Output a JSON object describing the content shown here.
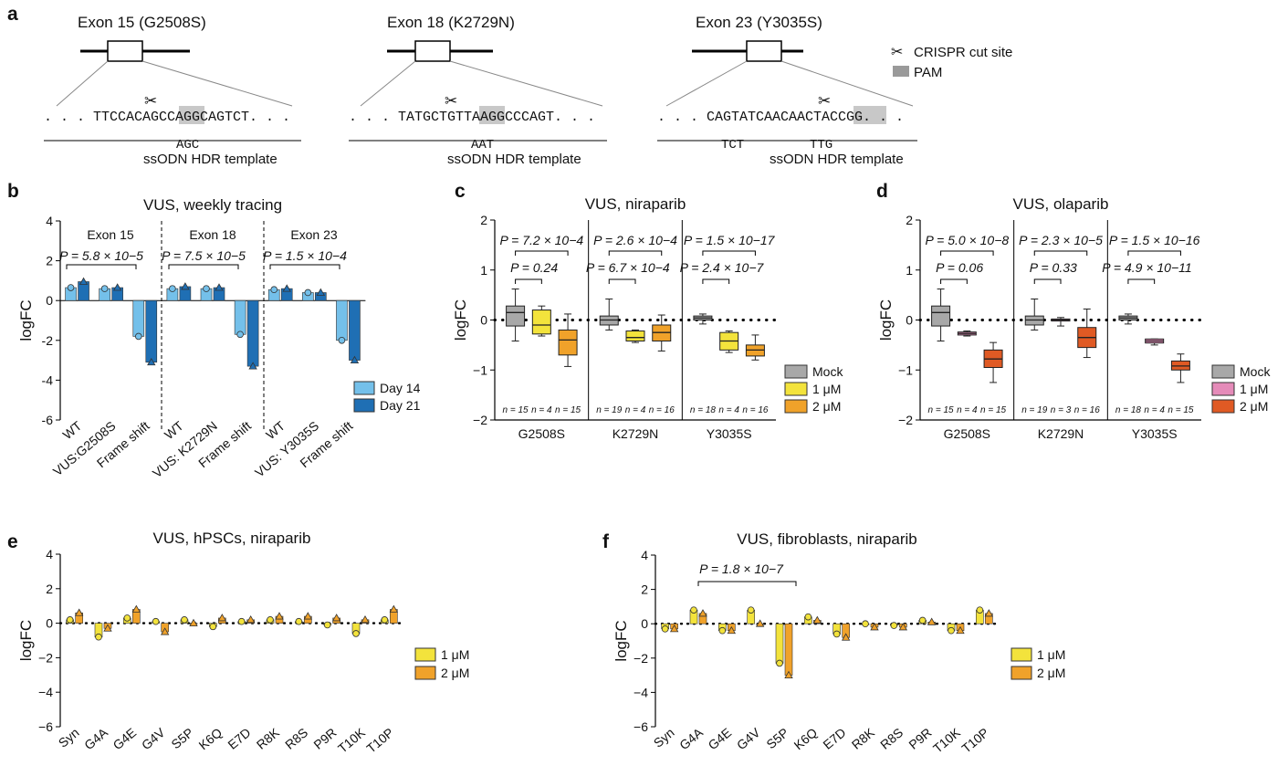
{
  "panel_labels": {
    "a": "a",
    "b": "b",
    "c": "c",
    "d": "d",
    "e": "e",
    "f": "f"
  },
  "colors": {
    "day14": "#74c0ea",
    "day21": "#1f6fb4",
    "mock": "#a8a8a8",
    "niraparib_1uM": "#f3e33c",
    "niraparib_2uM": "#f0a22a",
    "olaparib_1uM": "#e58bb9",
    "olaparib_2uM": "#e05a24",
    "pam": "#c8c8c8"
  },
  "panel_a": {
    "exons": [
      {
        "title": "Exon 15 (G2508S)",
        "sequence": ". . . TTCCACAGCCAGGCAGTCT. . .",
        "pam_index": 10,
        "template_change": "AGC",
        "template_label": "ssODN HDR template"
      },
      {
        "title": "Exon 18 (K2729N)",
        "sequence": ". . . TATGCTGTTAAGGCCCAGT. . .",
        "pam_index": 10,
        "template_change": "AAT",
        "template_label": "ssODN HDR template"
      },
      {
        "title": "Exon 23 (Y3035S)",
        "sequence": ". . . CAGTATCAACAACTACCGG. . .",
        "pam_index": 16,
        "template_change": "TCT",
        "template_change2": "TTG",
        "template_label": "ssODN HDR template"
      }
    ],
    "legend": {
      "cut_site": "CRISPR cut site",
      "pam": "PAM"
    }
  },
  "chart_data": [
    {
      "panel": "b",
      "type": "bar",
      "title": "VUS, weekly tracing",
      "ylabel": "logFC",
      "ylim": [
        -6,
        4
      ],
      "yticks": [
        "4",
        "2",
        "0",
        "-2",
        "-4",
        "-6"
      ],
      "categories": [
        "WT",
        "VUS:G2508S",
        "Frame shift",
        "WT",
        "VUS: K2729N",
        "Frame shift",
        "WT",
        "VUS: Y3035S",
        "Frame shift"
      ],
      "groups": [
        "Exon 15",
        "Exon 18",
        "Exon 23"
      ],
      "series": [
        {
          "name": "Day 14",
          "values": [
            0.65,
            0.6,
            -1.8,
            0.6,
            0.6,
            -1.7,
            0.55,
            0.4,
            -2.0
          ]
        },
        {
          "name": "Day 21",
          "values": [
            0.95,
            0.65,
            -3.1,
            0.7,
            0.65,
            -3.3,
            0.6,
            0.4,
            -3.0
          ]
        }
      ],
      "annotations": [
        "P = 5.8 × 10−5",
        "P = 7.5 × 10−5",
        "P = 1.5 × 10−4"
      ]
    },
    {
      "panel": "c",
      "type": "box",
      "title": "VUS, niraparib",
      "ylabel": "logFC",
      "ylim": [
        -2,
        2
      ],
      "yticks": [
        "2",
        "1",
        "0",
        "−1",
        "−2"
      ],
      "categories": [
        "G2508S",
        "K2729N",
        "Y3035S"
      ],
      "series_names": [
        "Mock",
        "1 μM",
        "2 μM"
      ],
      "boxes": [
        [
          [
            -0.42,
            -0.12,
            0.15,
            0.28,
            0.62
          ],
          [
            -0.32,
            -0.28,
            -0.1,
            0.2,
            0.28
          ],
          [
            -0.93,
            -0.7,
            -0.4,
            -0.2,
            0.12
          ]
        ],
        [
          [
            -0.2,
            -0.1,
            0.0,
            0.08,
            0.42
          ],
          [
            -0.45,
            -0.42,
            -0.35,
            -0.22,
            -0.2
          ],
          [
            -0.62,
            -0.42,
            -0.25,
            -0.1,
            0.1
          ]
        ],
        [
          [
            -0.08,
            0.0,
            0.04,
            0.08,
            0.12
          ],
          [
            -0.65,
            -0.6,
            -0.42,
            -0.25,
            -0.22
          ],
          [
            -0.8,
            -0.72,
            -0.6,
            -0.5,
            -0.3
          ]
        ]
      ],
      "n_labels": [
        [
          "n = 15",
          "n = 4",
          "n = 15"
        ],
        [
          "n = 19",
          "n = 4",
          "n = 16"
        ],
        [
          "n = 18",
          "n = 4",
          "n = 16"
        ]
      ],
      "pvalues": [
        [
          "P = 7.2 × 10−4",
          "P = 0.24"
        ],
        [
          "P = 2.6 × 10−4",
          "P = 6.7 × 10−4"
        ],
        [
          "P = 1.5 × 10−17",
          "P = 2.4 × 10−7"
        ]
      ]
    },
    {
      "panel": "d",
      "type": "box",
      "title": "VUS, olaparib",
      "ylabel": "logFC",
      "ylim": [
        -2,
        2
      ],
      "yticks": [
        "2",
        "1",
        "0",
        "−1",
        "−2"
      ],
      "categories": [
        "G2508S",
        "K2729N",
        "Y3035S"
      ],
      "series_names": [
        "Mock",
        "1 μM",
        "2 μM"
      ],
      "boxes": [
        [
          [
            -0.42,
            -0.12,
            0.15,
            0.28,
            0.62
          ],
          [
            -0.32,
            -0.3,
            -0.27,
            -0.24,
            -0.22
          ],
          [
            -1.25,
            -0.95,
            -0.78,
            -0.6,
            -0.45
          ]
        ],
        [
          [
            -0.2,
            -0.1,
            0.0,
            0.08,
            0.42
          ],
          [
            -0.12,
            -0.02,
            0.0,
            0.02,
            0.05
          ],
          [
            -0.75,
            -0.55,
            -0.35,
            -0.15,
            0.22
          ]
        ],
        [
          [
            -0.08,
            0.0,
            0.04,
            0.08,
            0.12
          ],
          [
            -0.5,
            -0.46,
            -0.42,
            -0.38,
            -0.38
          ],
          [
            -1.25,
            -1.0,
            -0.92,
            -0.82,
            -0.68
          ]
        ]
      ],
      "n_labels": [
        [
          "n = 15",
          "n = 4",
          "n = 15"
        ],
        [
          "n = 19",
          "n = 3",
          "n = 16"
        ],
        [
          "n = 18",
          "n = 4",
          "n = 15"
        ]
      ],
      "pvalues": [
        [
          "P = 5.0 × 10−8",
          "P = 0.06"
        ],
        [
          "P = 2.3 × 10−5",
          "P = 0.33"
        ],
        [
          "P = 1.5 × 10−16",
          "P = 4.9 × 10−11"
        ]
      ]
    },
    {
      "panel": "e",
      "type": "bar",
      "title": "VUS, hPSCs, niraparib",
      "ylabel": "logFC",
      "ylim": [
        -6,
        4
      ],
      "yticks": [
        "4",
        "2",
        "0",
        "−2",
        "−4",
        "−6"
      ],
      "categories": [
        "Syn",
        "G4A",
        "G4E",
        "G4V",
        "S5P",
        "K6Q",
        "E7D",
        "R8K",
        "R8S",
        "P9R",
        "T10K",
        "T10P"
      ],
      "series": [
        {
          "name": "1 μM",
          "values": [
            0.2,
            -0.8,
            0.3,
            0.1,
            0.2,
            -0.2,
            0.1,
            0.2,
            0.1,
            -0.1,
            -0.6,
            0.2
          ]
        },
        {
          "name": "2 μM",
          "values": [
            0.6,
            -0.3,
            0.8,
            -0.5,
            0.0,
            0.3,
            0.2,
            0.4,
            0.4,
            0.3,
            0.2,
            0.8
          ]
        }
      ]
    },
    {
      "panel": "f",
      "type": "bar",
      "title": "VUS, fibroblasts, niraparib",
      "ylabel": "logFC",
      "ylim": [
        -6,
        4
      ],
      "yticks": [
        "4",
        "2",
        "0",
        "−2",
        "−4",
        "−6"
      ],
      "categories": [
        "Syn",
        "G4A",
        "G4E",
        "G4V",
        "S5P",
        "K6Q",
        "E7D",
        "R8K",
        "R8S",
        "P9R",
        "T10K",
        "T10P"
      ],
      "series": [
        {
          "name": "1 μM",
          "values": [
            -0.3,
            0.8,
            -0.4,
            0.8,
            -2.3,
            0.4,
            -0.6,
            0.0,
            -0.1,
            0.2,
            -0.4,
            0.8
          ]
        },
        {
          "name": "2 μM",
          "values": [
            -0.3,
            0.6,
            -0.4,
            0.0,
            -3.0,
            0.2,
            -0.8,
            -0.2,
            -0.2,
            0.1,
            -0.4,
            0.6
          ]
        }
      ],
      "annotations": [
        "P = 1.8 × 10−7"
      ]
    }
  ]
}
